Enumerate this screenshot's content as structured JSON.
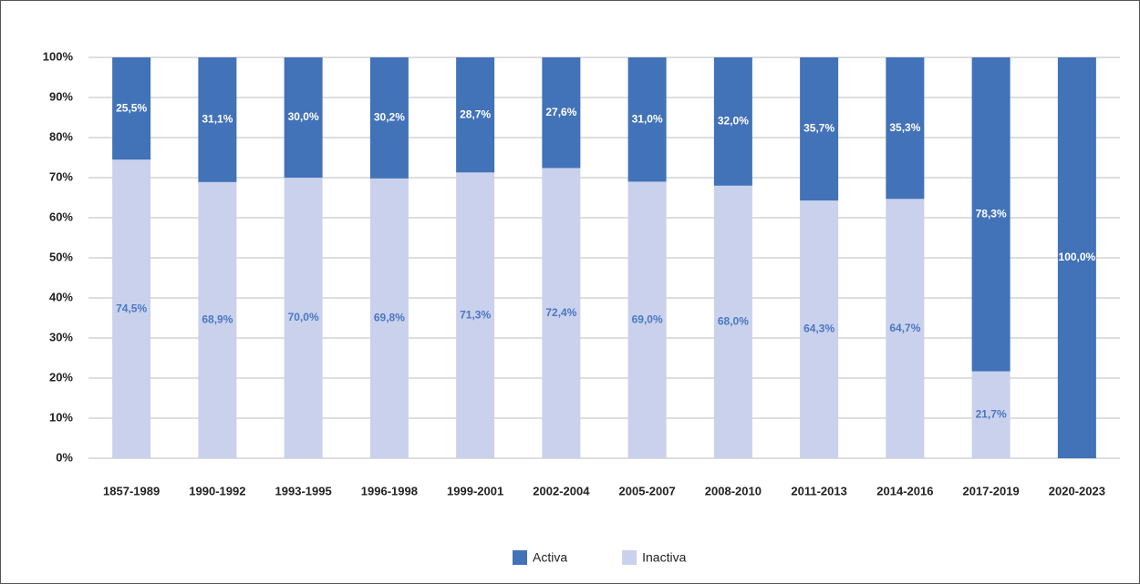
{
  "chart_data": {
    "type": "stacked_bar",
    "categories": [
      "1857-1989",
      "1990-1992",
      "1993-1995",
      "1996-1998",
      "1999-2001",
      "2002-2004",
      "2005-2007",
      "2008-2010",
      "2011-2013",
      "2014-2016",
      "2017-2019",
      "2020-2023"
    ],
    "series": [
      {
        "name": "Inactiva",
        "color": "#c9d1ec",
        "label_color": "#4a78c0",
        "values": [
          74.5,
          68.9,
          70.0,
          69.8,
          71.3,
          72.4,
          69.0,
          68.0,
          64.3,
          64.7,
          21.7,
          0
        ],
        "value_labels": [
          "74,5%",
          "68,9%",
          "70,0%",
          "69,8%",
          "71,3%",
          "72,4%",
          "69,0%",
          "68,0%",
          "64,3%",
          "64,7%",
          "21,7%",
          null
        ]
      },
      {
        "name": "Activa",
        "color": "#4272b8",
        "label_color": "#ffffff",
        "values": [
          25.5,
          31.1,
          30.0,
          30.2,
          28.7,
          27.6,
          31.0,
          32.0,
          35.7,
          35.3,
          78.3,
          100.0
        ],
        "value_labels": [
          "25,5%",
          "31,1%",
          "30,0%",
          "30,2%",
          "28,7%",
          "27,6%",
          "31,0%",
          "32,0%",
          "35,7%",
          "35,3%",
          "78,3%",
          "100,0%"
        ]
      }
    ],
    "ylim": [
      0,
      100
    ],
    "yticks": [
      {
        "value": 0,
        "label": "0%"
      },
      {
        "value": 10,
        "label": "10%"
      },
      {
        "value": 20,
        "label": "20%"
      },
      {
        "value": 30,
        "label": "30%"
      },
      {
        "value": 40,
        "label": "40%"
      },
      {
        "value": 50,
        "label": "50%"
      },
      {
        "value": 60,
        "label": "60%"
      },
      {
        "value": 70,
        "label": "70%"
      },
      {
        "value": 80,
        "label": "80%"
      },
      {
        "value": 90,
        "label": "90%"
      },
      {
        "value": 100,
        "label": "100%"
      }
    ],
    "grid": true,
    "legend": "bottom",
    "legend_order": [
      "Activa",
      "Inactiva"
    ]
  }
}
